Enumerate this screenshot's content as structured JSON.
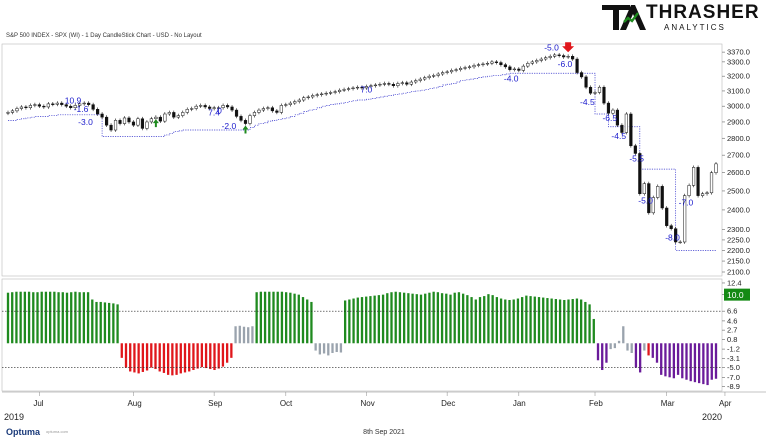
{
  "header": {
    "chart_title": "S&P 500 INDEX - SPX (WI) - 1 Day CandleStick Chart - USD - No Layout"
  },
  "brand": {
    "name": "THRASHER",
    "sub": "ANALYTICS",
    "mark": "TA"
  },
  "footer": {
    "date": "8th Sep 2021",
    "provider": "Optuma",
    "url": "optuma.com"
  },
  "colors": {
    "up_hist": "#1f8a1f",
    "down_red": "#e0161b",
    "down_purple": "#6a1b9a",
    "neutral": "#9aa3ad",
    "trail": "#3333cc",
    "label_blue": "#1a1acc",
    "badge": "#148a14"
  },
  "chart_data": [
    {
      "type": "candlestick",
      "x": [
        "Jul",
        "Aug",
        "Sep",
        "Oct",
        "Nov",
        "Dec",
        "Jan",
        "Feb",
        "Mar",
        "Apr"
      ],
      "year_labels": [
        "2019",
        "2020"
      ],
      "y_ticks": [
        "3370.0",
        "3300.0",
        "3200.0",
        "3100.0",
        "3000.0",
        "2900.0",
        "2800.0",
        "2700.0",
        "2600.0",
        "2500.0",
        "2400.0",
        "2300.0",
        "2250.0",
        "2200.0",
        "2150.0",
        "2100.0"
      ],
      "ylim": [
        2100,
        3400
      ],
      "close_series": [
        2960,
        2970,
        2985,
        2995,
        2990,
        3005,
        3010,
        3000,
        2995,
        3015,
        3012,
        3020,
        3010,
        3000,
        2990,
        3005,
        3015,
        3020,
        3010,
        2980,
        2950,
        2930,
        2880,
        2850,
        2910,
        2890,
        2925,
        2900,
        2880,
        2920,
        2860,
        2900,
        2920,
        2930,
        2905,
        2950,
        2960,
        2930,
        2940,
        2960,
        2980,
        2985,
        3000,
        3005,
        2995,
        2985,
        2990,
        2990,
        3005,
        2995,
        2975,
        2935,
        2910,
        2890,
        2940,
        2960,
        2975,
        2985,
        2990,
        2970,
        2960,
        3005,
        3010,
        3020,
        3030,
        3040,
        3055,
        3060,
        3070,
        3075,
        3080,
        3085,
        3090,
        3095,
        3105,
        3110,
        3115,
        3120,
        3125,
        3120,
        3130,
        3135,
        3140,
        3145,
        3150,
        3145,
        3135,
        3150,
        3155,
        3145,
        3160,
        3170,
        3180,
        3190,
        3200,
        3205,
        3215,
        3225,
        3230,
        3240,
        3245,
        3255,
        3260,
        3265,
        3275,
        3280,
        3285,
        3290,
        3300,
        3295,
        3280,
        3265,
        3245,
        3250,
        3240,
        3270,
        3290,
        3300,
        3310,
        3320,
        3330,
        3340,
        3350,
        3345,
        3335,
        3340,
        3320,
        3225,
        3195,
        3125,
        3085,
        3090,
        3125,
        3020,
        2955,
        2975,
        2880,
        2835,
        2950,
        2755,
        2710,
        2485,
        2540,
        2385,
        2465,
        2525,
        2410,
        2320,
        2305,
        2240,
        2240,
        2475,
        2530,
        2630,
        2475,
        2485,
        2490,
        2600,
        2650
      ],
      "trailing_stop": [
        2910,
        2910,
        2915,
        2920,
        2925,
        2930,
        2935,
        2935,
        2935,
        2940,
        2940,
        2945,
        2945,
        2945,
        2945,
        2945,
        2945,
        2945,
        2945,
        2945,
        2945,
        2810,
        2810,
        2810,
        2810,
        2810,
        2810,
        2810,
        2810,
        2810,
        2810,
        2810,
        2810,
        2810,
        2810,
        2820,
        2830,
        2840,
        2845,
        2850,
        2850,
        2850,
        2850,
        2850,
        2850,
        2850,
        2850,
        2850,
        2850,
        2850,
        2850,
        2850,
        2850,
        2850,
        2865,
        2880,
        2890,
        2895,
        2905,
        2910,
        2915,
        2920,
        2925,
        2935,
        2945,
        2955,
        2965,
        2975,
        2980,
        2990,
        3000,
        3005,
        3010,
        3015,
        3020,
        3025,
        3030,
        3035,
        3040,
        3040,
        3045,
        3050,
        3055,
        3060,
        3065,
        3070,
        3075,
        3080,
        3085,
        3090,
        3095,
        3100,
        3105,
        3110,
        3115,
        3120,
        3130,
        3140,
        3145,
        3150,
        3160,
        3170,
        3175,
        3180,
        3185,
        3190,
        3195,
        3200,
        3205,
        3205,
        3210,
        3215,
        3220,
        3220,
        3220,
        3220,
        3220,
        3220,
        3220,
        3220,
        3220,
        3220,
        3220,
        3220,
        3220,
        3220,
        3220,
        3220,
        3220,
        3220,
        3220,
        2950,
        2950,
        2950,
        2870,
        2870,
        2870,
        2870,
        2870,
        2870,
        2870,
        2620,
        2620,
        2620,
        2620,
        2620,
        2620,
        2620,
        2620,
        2200,
        2200,
        2200,
        2200,
        2200,
        2200,
        2200,
        2200,
        2200,
        2200
      ],
      "annotations": [
        "10.9",
        "-1.6",
        "-3.0",
        "7.4",
        "0",
        "-2.0",
        "7.0",
        "-4.0",
        "-5.0",
        "-6.0",
        "-4.5",
        "-6.5",
        "-4.5",
        "-5.5",
        "-5.0",
        "-8.0",
        "-7.0"
      ],
      "markers": [
        "up-arrow",
        "up-arrow",
        "down-arrow"
      ]
    },
    {
      "type": "histogram",
      "y_ticks": [
        "12.4",
        "10.0",
        "6.6",
        "4.6",
        "2.7",
        "0.8",
        "-1.2",
        "-3.1",
        "-5.0",
        "-7.0",
        "-8.9"
      ],
      "ylim": [
        -9.2,
        12.6
      ],
      "ref_lines": [
        6.6,
        -5.0
      ],
      "current_value": "10.0",
      "values": [
        10.4,
        10.5,
        10.6,
        10.6,
        10.6,
        10.6,
        10.5,
        10.5,
        10.6,
        10.6,
        10.6,
        10.6,
        10.5,
        10.5,
        10.4,
        10.5,
        10.6,
        10.5,
        10.5,
        10.5,
        9,
        8.5,
        8.5,
        8.4,
        8.3,
        8.2,
        8.0,
        -3.0,
        -5.0,
        -5.8,
        -6.0,
        -6.2,
        -5.9,
        -5.6,
        -5.0,
        -5.3,
        -5.8,
        -6.1,
        -6.5,
        -6.6,
        -6.5,
        -6.2,
        -6.0,
        -5.8,
        -5.5,
        -5.2,
        -4.9,
        -5.1,
        -5.3,
        -5.5,
        -5.2,
        -4.8,
        -4.0,
        -3.0,
        3.5,
        3.6,
        3.4,
        3.3,
        3.5,
        10.5,
        10.6,
        10.6,
        10.6,
        10.6,
        10.6,
        10.6,
        10.5,
        10.4,
        10.2,
        10.0,
        9.5,
        9.0,
        8.5,
        -1.5,
        -2.3,
        -2.1,
        -2.5,
        -2.0,
        -1.8,
        -1.9,
        8.8,
        9.0,
        9.2,
        9.4,
        9.5,
        9.6,
        9.7,
        9.8,
        9.9,
        10.0,
        10.3,
        10.5,
        10.6,
        10.5,
        10.4,
        10.3,
        10.2,
        10.1,
        10.0,
        10.2,
        10.4,
        10.6,
        10.5,
        10.3,
        10.2,
        10.0,
        10.4,
        10.5,
        10.2,
        9.9,
        9.5,
        9.0,
        9.5,
        9.7,
        10.1,
        9.9,
        9.5,
        9.2,
        9.0,
        8.9,
        9.0,
        9.2,
        9.5,
        9.8,
        9.7,
        9.6,
        9.5,
        9.4,
        9.3,
        9.2,
        9.1,
        9.0,
        8.9,
        9.0,
        9.1,
        9.2,
        9.0,
        8.5,
        8.0,
        5.0,
        -3.5,
        -5.5,
        -4.0,
        -1.2,
        -1.0,
        0.5,
        3.5,
        -1.5,
        -2.0,
        -5.0,
        -6.0,
        -1.5,
        -2.5,
        -3.0,
        -4.0,
        -6.5,
        -6.8,
        -7.0,
        -7.2,
        -6.5,
        -7.2,
        -7.5,
        -7.8,
        -8.0,
        -8.2,
        -8.4,
        -8.6,
        -7.5,
        -7.3
      ]
    }
  ]
}
